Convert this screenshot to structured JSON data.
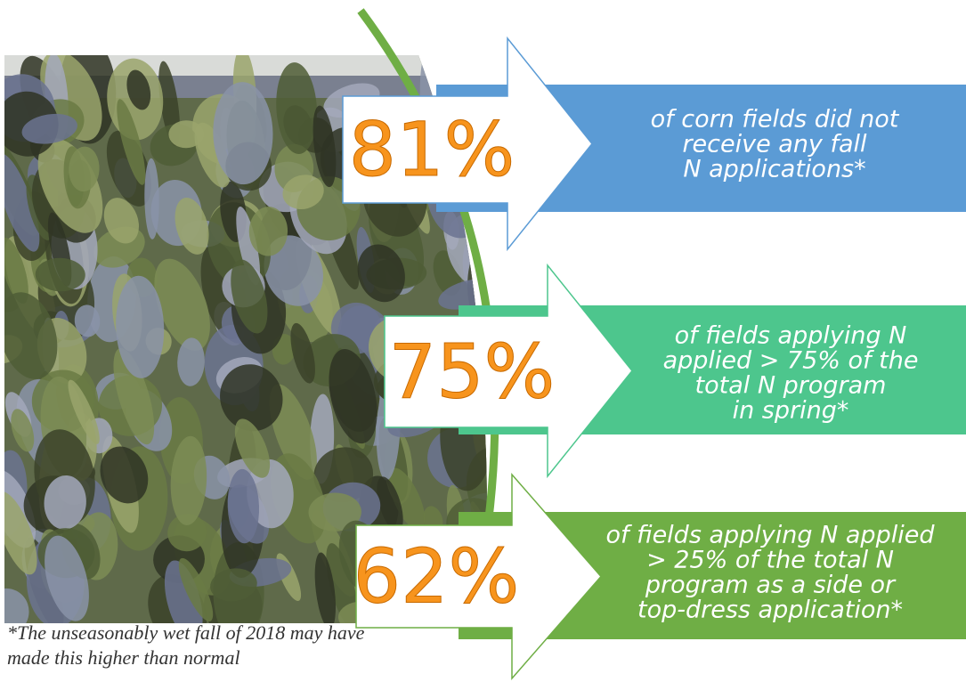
{
  "stats": [
    {
      "stat": "81%",
      "lines": [
        "of corn fields did not",
        "receive any fall",
        "N applications*"
      ]
    },
    {
      "stat": "75%",
      "lines": [
        "of fields applying N",
        "applied > 75% of the",
        "total N program",
        "in spring*"
      ]
    },
    {
      "stat": "62%",
      "lines": [
        "of fields applying N applied",
        "> 25% of the total N",
        "program as a side or",
        "top-dress application*"
      ]
    }
  ],
  "footnote": [
    "*The unseasonably wet fall of 2018 may have",
    "made this higher than normal"
  ]
}
